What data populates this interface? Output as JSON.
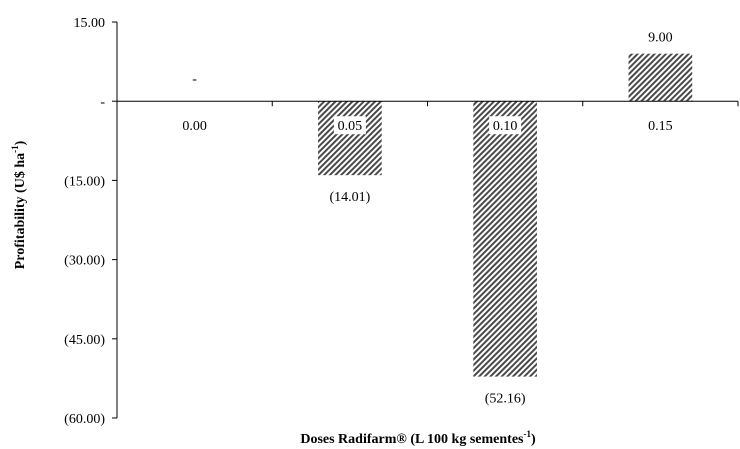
{
  "chart_data": {
    "type": "bar",
    "categories": [
      "0.00",
      "0.05",
      "0.10",
      "0.15"
    ],
    "values": [
      0,
      -14.01,
      -52.16,
      9.0
    ],
    "data_labels": [
      "-",
      "(14.01)",
      "(52.16)",
      "9.00"
    ],
    "ylim": [
      -60,
      15
    ],
    "y_ticks": [
      15,
      0,
      -15,
      -30,
      -45,
      -60
    ],
    "y_tick_labels": [
      "15.00",
      "-",
      "(15.00)",
      "(30.00)",
      "(45.00)",
      "(60.00)"
    ],
    "ylabel": {
      "main": "Profitability (U$ ha",
      "sup": "-1",
      "tail": ")"
    },
    "xlabel": {
      "main": "Doses Radifarm® (L 100 kg sementes",
      "sup": "-1",
      "tail": ")"
    },
    "bar_pattern": "diagonal-hatch",
    "bar_color": "#4a4a4a",
    "grid": false,
    "legend": "none"
  }
}
